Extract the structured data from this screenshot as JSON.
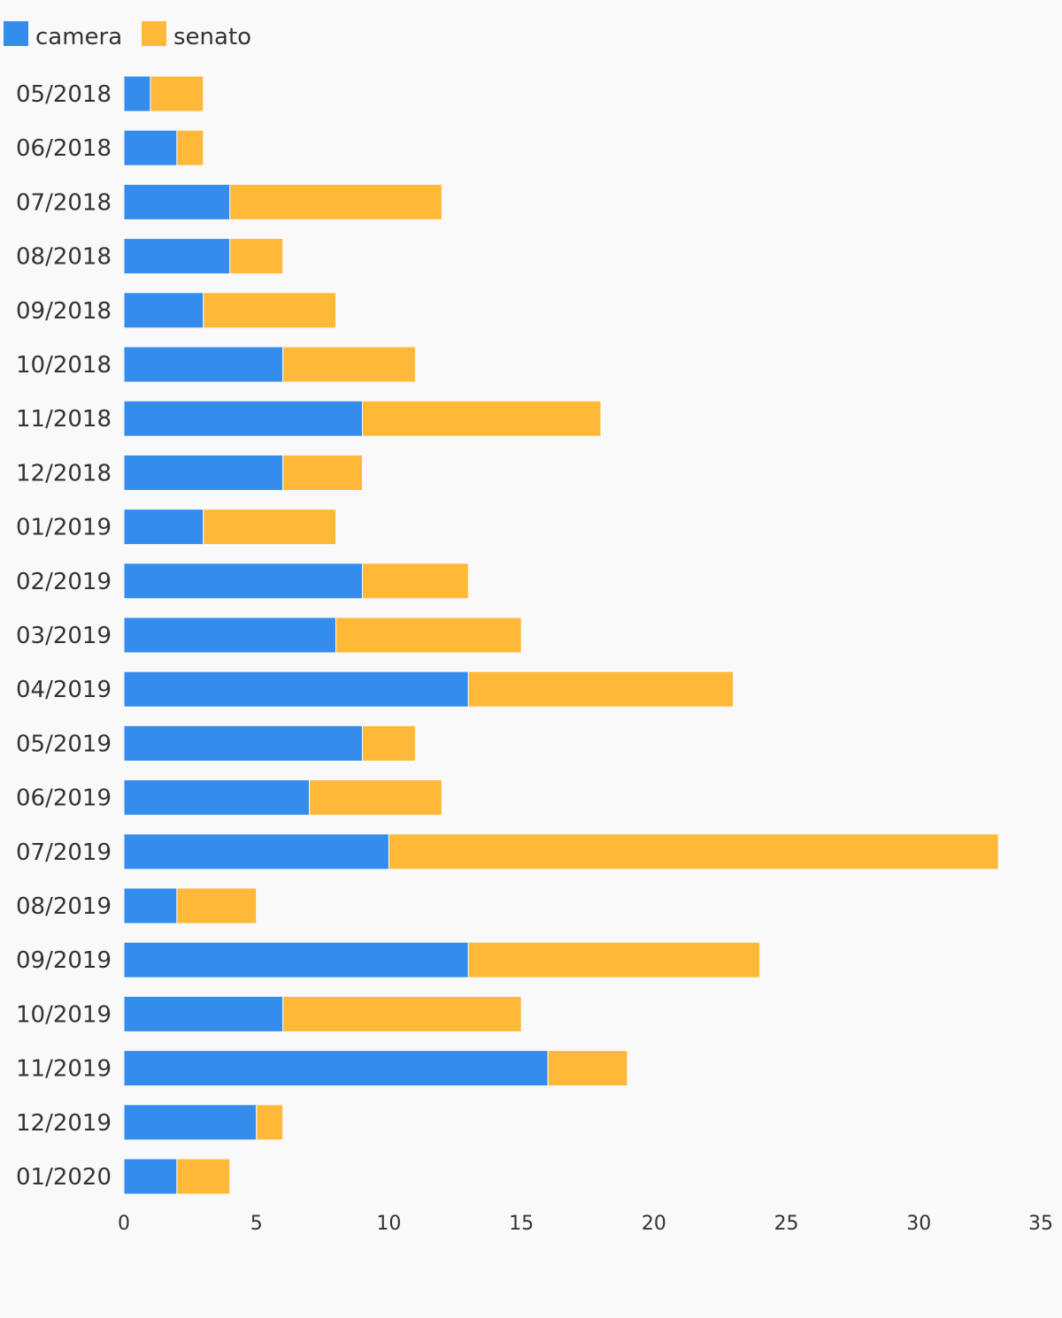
{
  "colors": {
    "background": "#f9f9f9",
    "camera": "#348ced",
    "senato": "#ffb838",
    "text": "#333333"
  },
  "chart_data": {
    "type": "bar",
    "orientation": "horizontal",
    "stacked": true,
    "legend_position": "top-left",
    "grid": false,
    "xlim": [
      0,
      35
    ],
    "x_ticks": [
      "0",
      "5",
      "10",
      "15",
      "20",
      "25",
      "30",
      "35"
    ],
    "categories": [
      "05/2018",
      "06/2018",
      "07/2018",
      "08/2018",
      "09/2018",
      "10/2018",
      "11/2018",
      "12/2018",
      "01/2019",
      "02/2019",
      "03/2019",
      "04/2019",
      "05/2019",
      "06/2019",
      "07/2019",
      "08/2019",
      "09/2019",
      "10/2019",
      "11/2019",
      "12/2019",
      "01/2020"
    ],
    "series": [
      {
        "name": "camera",
        "values": [
          1,
          2,
          4,
          4,
          3,
          6,
          9,
          6,
          3,
          9,
          8,
          13,
          9,
          7,
          10,
          2,
          13,
          6,
          16,
          5,
          2
        ]
      },
      {
        "name": "senato",
        "values": [
          2,
          1,
          8,
          2,
          5,
          5,
          9,
          3,
          5,
          4,
          7,
          10,
          2,
          5,
          23,
          3,
          11,
          9,
          3,
          1,
          2
        ]
      }
    ]
  }
}
